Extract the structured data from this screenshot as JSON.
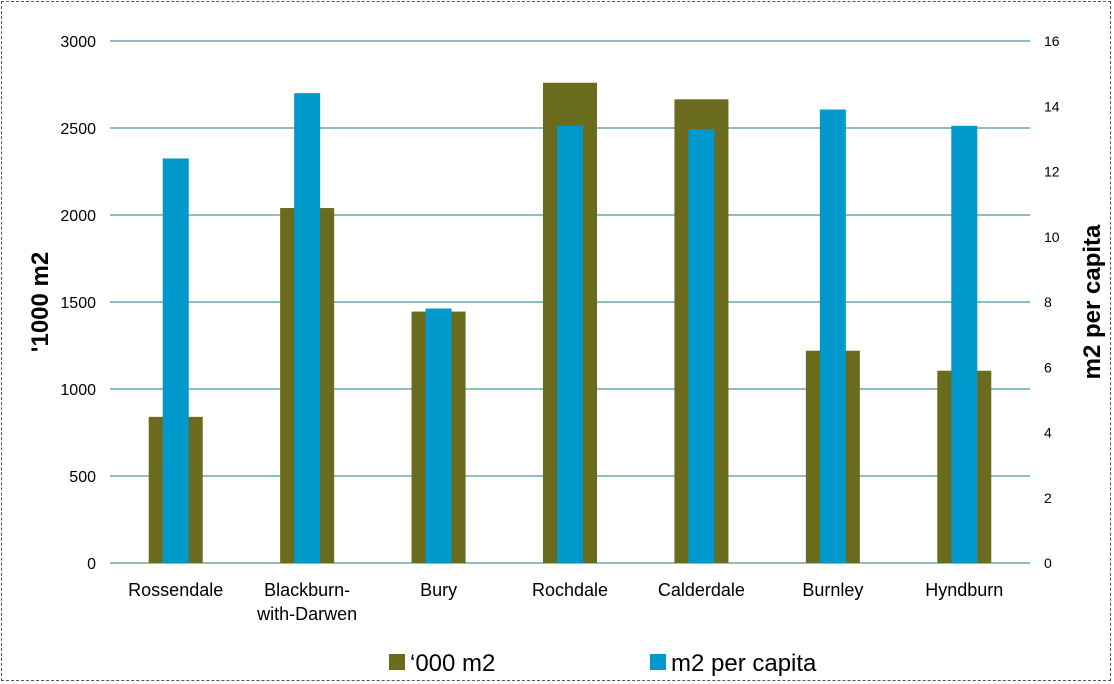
{
  "chart_data": {
    "type": "bar",
    "categories": [
      "Rossendale",
      "Blackburn-\nwith-Darwen",
      "Bury",
      "Rochdale",
      "Calderdale",
      "Burnley",
      "Hyndburn"
    ],
    "series": [
      {
        "name": "‘000 m2",
        "axis": "left",
        "values": [
          840,
          2040,
          1445,
          2760,
          2665,
          1220,
          1105
        ]
      },
      {
        "name": "m2 per capita",
        "axis": "right",
        "values": [
          12.4,
          14.4,
          7.8,
          13.4,
          13.3,
          13.9,
          13.4
        ]
      }
    ],
    "ylabel": "'1000 m2",
    "ylabel_right": "m2 per capita",
    "ylim": [
      0,
      3000
    ],
    "ylim_right": [
      0,
      16
    ],
    "yticks": [
      "0",
      "500",
      "1000",
      "1500",
      "2000",
      "2500",
      "3000"
    ],
    "yticks_right": [
      "0",
      "2",
      "4",
      "6",
      "8",
      "10",
      "12",
      "14",
      "16"
    ],
    "grid": true,
    "legend": "bottom",
    "colors": {
      "series_1": "#6b6b1e",
      "series_2": "#0099cc",
      "grid": "#1b7e8a"
    }
  }
}
